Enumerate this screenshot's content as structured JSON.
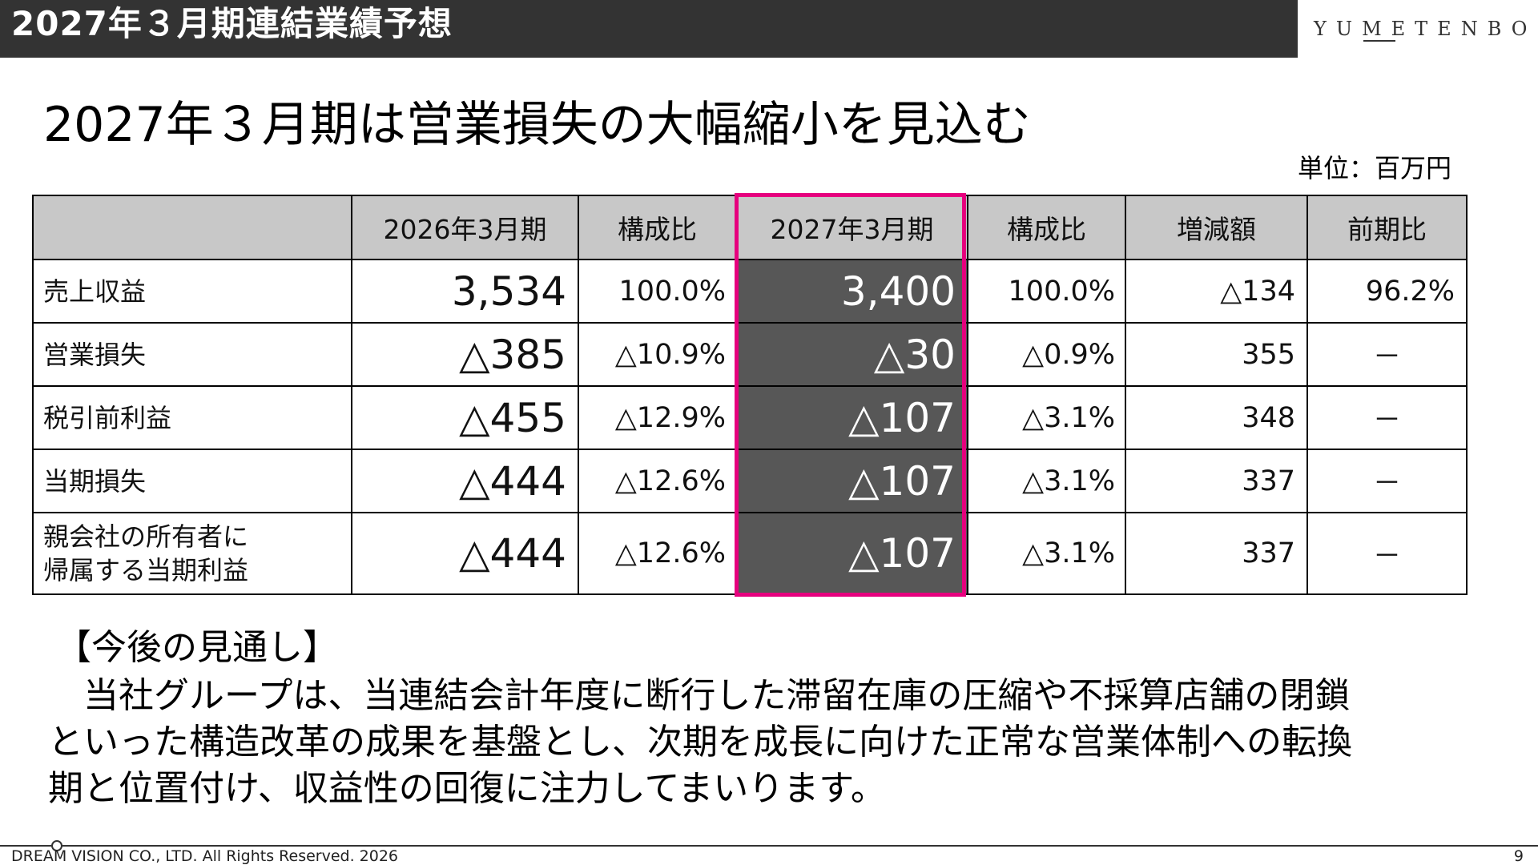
{
  "header": {
    "title": "2027年３月期連結業績予想",
    "brand": "YUMETENBO",
    "colors": {
      "bar": "#333333",
      "highlight_border": "#e6007e",
      "highlight_fill": "#575757",
      "header_fill": "#c8c8c8"
    }
  },
  "main_title": "2027年３月期は営業損失の大幅縮小を見込む",
  "unit_label": "単位：百万円",
  "table": {
    "columns": [
      "",
      "2026年3月期",
      "構成比",
      "2027年3月期",
      "構成比",
      "増減額",
      "前期比"
    ],
    "rows": [
      {
        "label": "売上収益",
        "fy2026": "3,534",
        "ratio2026": "100.0%",
        "fy2027": "3,400",
        "ratio2027": "100.0%",
        "change": "△134",
        "yoy": "96.2%"
      },
      {
        "label": "営業損失",
        "fy2026": "△385",
        "ratio2026": "△10.9%",
        "fy2027": "△30",
        "ratio2027": "△0.9%",
        "change": "355",
        "yoy": "－"
      },
      {
        "label": "税引前利益",
        "fy2026": "△455",
        "ratio2026": "△12.9%",
        "fy2027": "△107",
        "ratio2027": "△3.1%",
        "change": "348",
        "yoy": "－"
      },
      {
        "label": "当期損失",
        "fy2026": "△444",
        "ratio2026": "△12.6%",
        "fy2027": "△107",
        "ratio2027": "△3.1%",
        "change": "337",
        "yoy": "－"
      },
      {
        "label_line1": "親会社の所有者に",
        "label_line2": "帰属する当期利益",
        "fy2026": "△444",
        "ratio2026": "△12.6%",
        "fy2027": "△107",
        "ratio2027": "△3.1%",
        "change": "337",
        "yoy": "－"
      }
    ]
  },
  "outlook": {
    "heading": "【今後の見通し】",
    "lines": [
      "　当社グループは、当連結会計年度に断行した滞留在庫の圧縮や不採算店舗の閉鎖",
      "といった構造改革の成果を基盤とし、次期を成長に向けた正常な営業体制への転換",
      "期と位置付け、収益性の回復に注力してまいります。"
    ]
  },
  "footer": {
    "copyright": "DREAM VISION CO., LTD. All Rights Reserved. 2026",
    "page_number": "9"
  }
}
